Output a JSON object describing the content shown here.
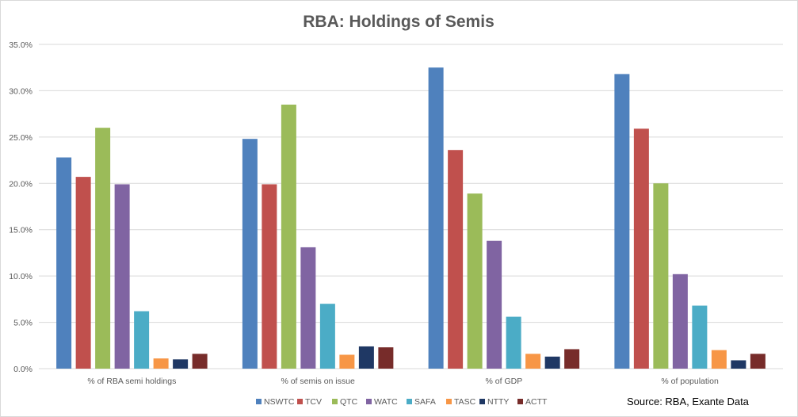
{
  "chart_data": {
    "type": "bar",
    "title": "RBA: Holdings of Semis",
    "xlabel": "",
    "ylabel": "",
    "ylim": [
      0,
      35
    ],
    "yticks": [
      0,
      5,
      10,
      15,
      20,
      25,
      30,
      35
    ],
    "ytick_labels": [
      "0.0%",
      "5.0%",
      "10.0%",
      "15.0%",
      "20.0%",
      "25.0%",
      "30.0%",
      "35.0%"
    ],
    "categories": [
      "% of RBA semi holdings",
      "% of semis on issue",
      "% of GDP",
      "% of population"
    ],
    "grid": true,
    "legend_position": "bottom",
    "series": [
      {
        "name": "NSWTC",
        "color": "#4f81bd",
        "values": [
          22.8,
          24.8,
          32.5,
          31.8
        ]
      },
      {
        "name": "TCV",
        "color": "#c0504d",
        "values": [
          20.7,
          19.9,
          23.6,
          25.9
        ]
      },
      {
        "name": "QTC",
        "color": "#9bbb59",
        "values": [
          26.0,
          28.5,
          18.9,
          20.0
        ]
      },
      {
        "name": "WATC",
        "color": "#8064a2",
        "values": [
          19.9,
          13.1,
          13.8,
          10.2
        ]
      },
      {
        "name": "SAFA",
        "color": "#4bacc6",
        "values": [
          6.2,
          7.0,
          5.6,
          6.8
        ]
      },
      {
        "name": "TASC",
        "color": "#f79646",
        "values": [
          1.1,
          1.5,
          1.6,
          2.0
        ]
      },
      {
        "name": "NTTY",
        "color": "#1f3864",
        "values": [
          1.0,
          2.4,
          1.3,
          0.9
        ]
      },
      {
        "name": "ACTT",
        "color": "#772c2a",
        "values": [
          1.6,
          2.3,
          2.1,
          1.6
        ]
      }
    ],
    "gridline_color": "#d9d9d9"
  },
  "annotations": {
    "source": "Source: RBA, Exante Data"
  }
}
